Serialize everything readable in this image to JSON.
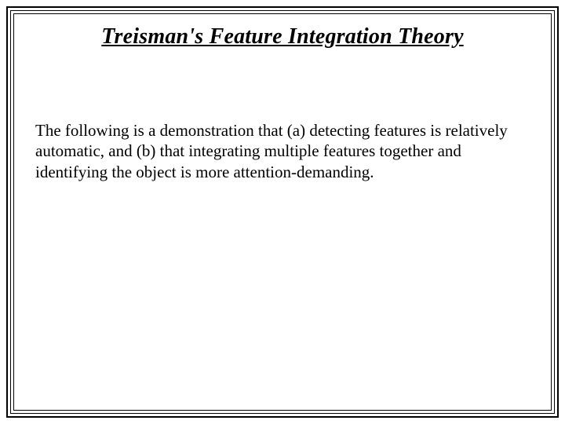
{
  "slide": {
    "title": "Treisman's Feature Integration Theory",
    "body": "The following is a demonstration that (a) detecting features is relatively automatic, and (b) that integrating multiple features together and identifying the object is more attention-demanding.",
    "colors": {
      "background": "#ffffff",
      "text": "#000000",
      "border": "#000000"
    },
    "typography": {
      "title_fontsize": 28,
      "title_weight": "bold",
      "title_style": "italic",
      "title_decoration": "underline",
      "body_fontsize": 21,
      "font_family": "Times New Roman"
    },
    "borders": {
      "outer_width": 2,
      "middle_width": 1,
      "inner_width": 1,
      "outer_inset": 8,
      "middle_inset": 13,
      "inner_inset": 17
    }
  }
}
